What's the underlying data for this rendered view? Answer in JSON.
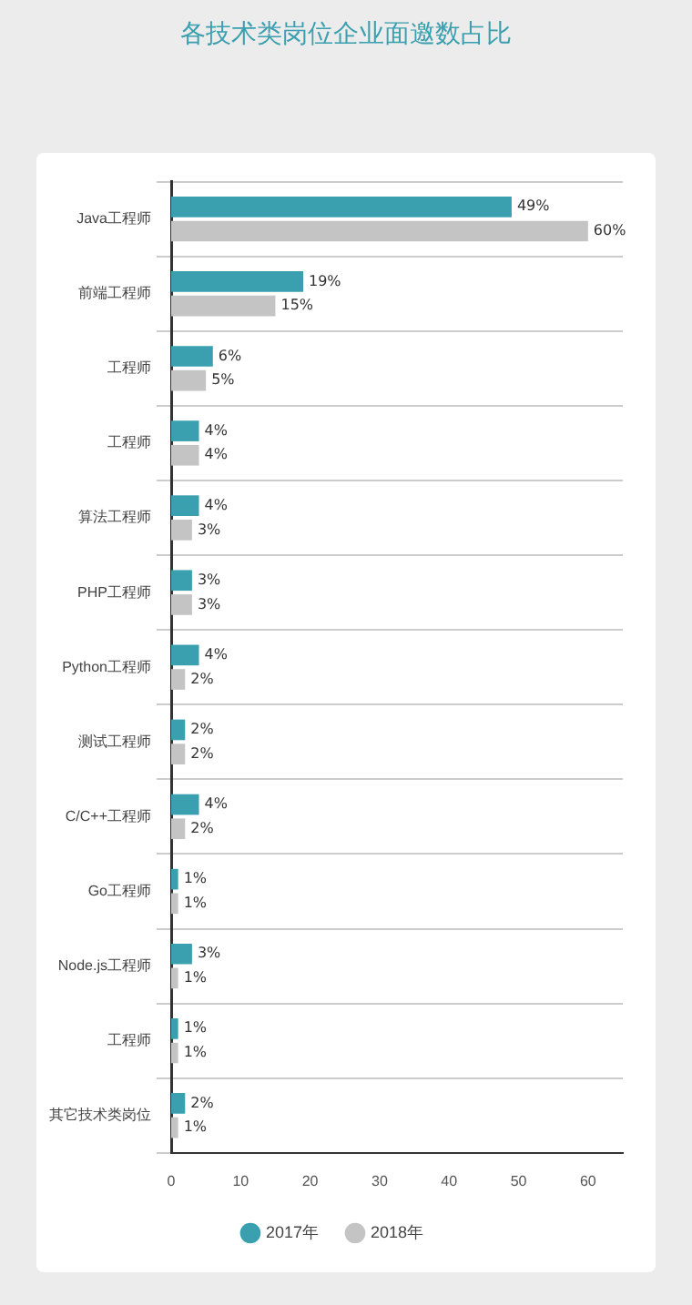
{
  "chart_data": {
    "type": "bar",
    "orientation": "horizontal",
    "title": "各技术类岗位企业面邀数占比",
    "categories": [
      "Java工程师",
      "前端工程师",
      "工程师",
      "工程师",
      "算法工程师",
      "PHP工程师",
      "Python工程师",
      "测试工程师",
      "C/C++工程师",
      "Go工程师",
      "Node.js工程师",
      "工程师",
      "其它技术类岗位"
    ],
    "series": [
      {
        "name": "2017年",
        "color": "#3a9fae",
        "values": [
          49,
          19,
          6,
          4,
          4,
          3,
          4,
          2,
          4,
          1,
          3,
          1,
          2
        ],
        "value_labels": [
          "49%",
          "19%",
          "6%",
          "4%",
          "4%",
          "3%",
          "4%",
          "2%",
          "4%",
          "1%",
          "3%",
          "1%",
          "2%"
        ]
      },
      {
        "name": "2018年",
        "color": "#c4c4c4",
        "values": [
          60,
          15,
          5,
          4,
          3,
          3,
          2,
          2,
          2,
          1,
          1,
          1,
          1
        ],
        "value_labels": [
          "60%",
          "15%",
          "5%",
          "4%",
          "3%",
          "3%",
          "2%",
          "2%",
          "2%",
          "1%",
          "1%",
          "1%",
          "1%"
        ]
      }
    ],
    "xlim": [
      0,
      65
    ],
    "xticks": [
      0,
      10,
      20,
      30,
      40,
      50,
      60
    ],
    "grid": "y",
    "legend": "bottom"
  }
}
